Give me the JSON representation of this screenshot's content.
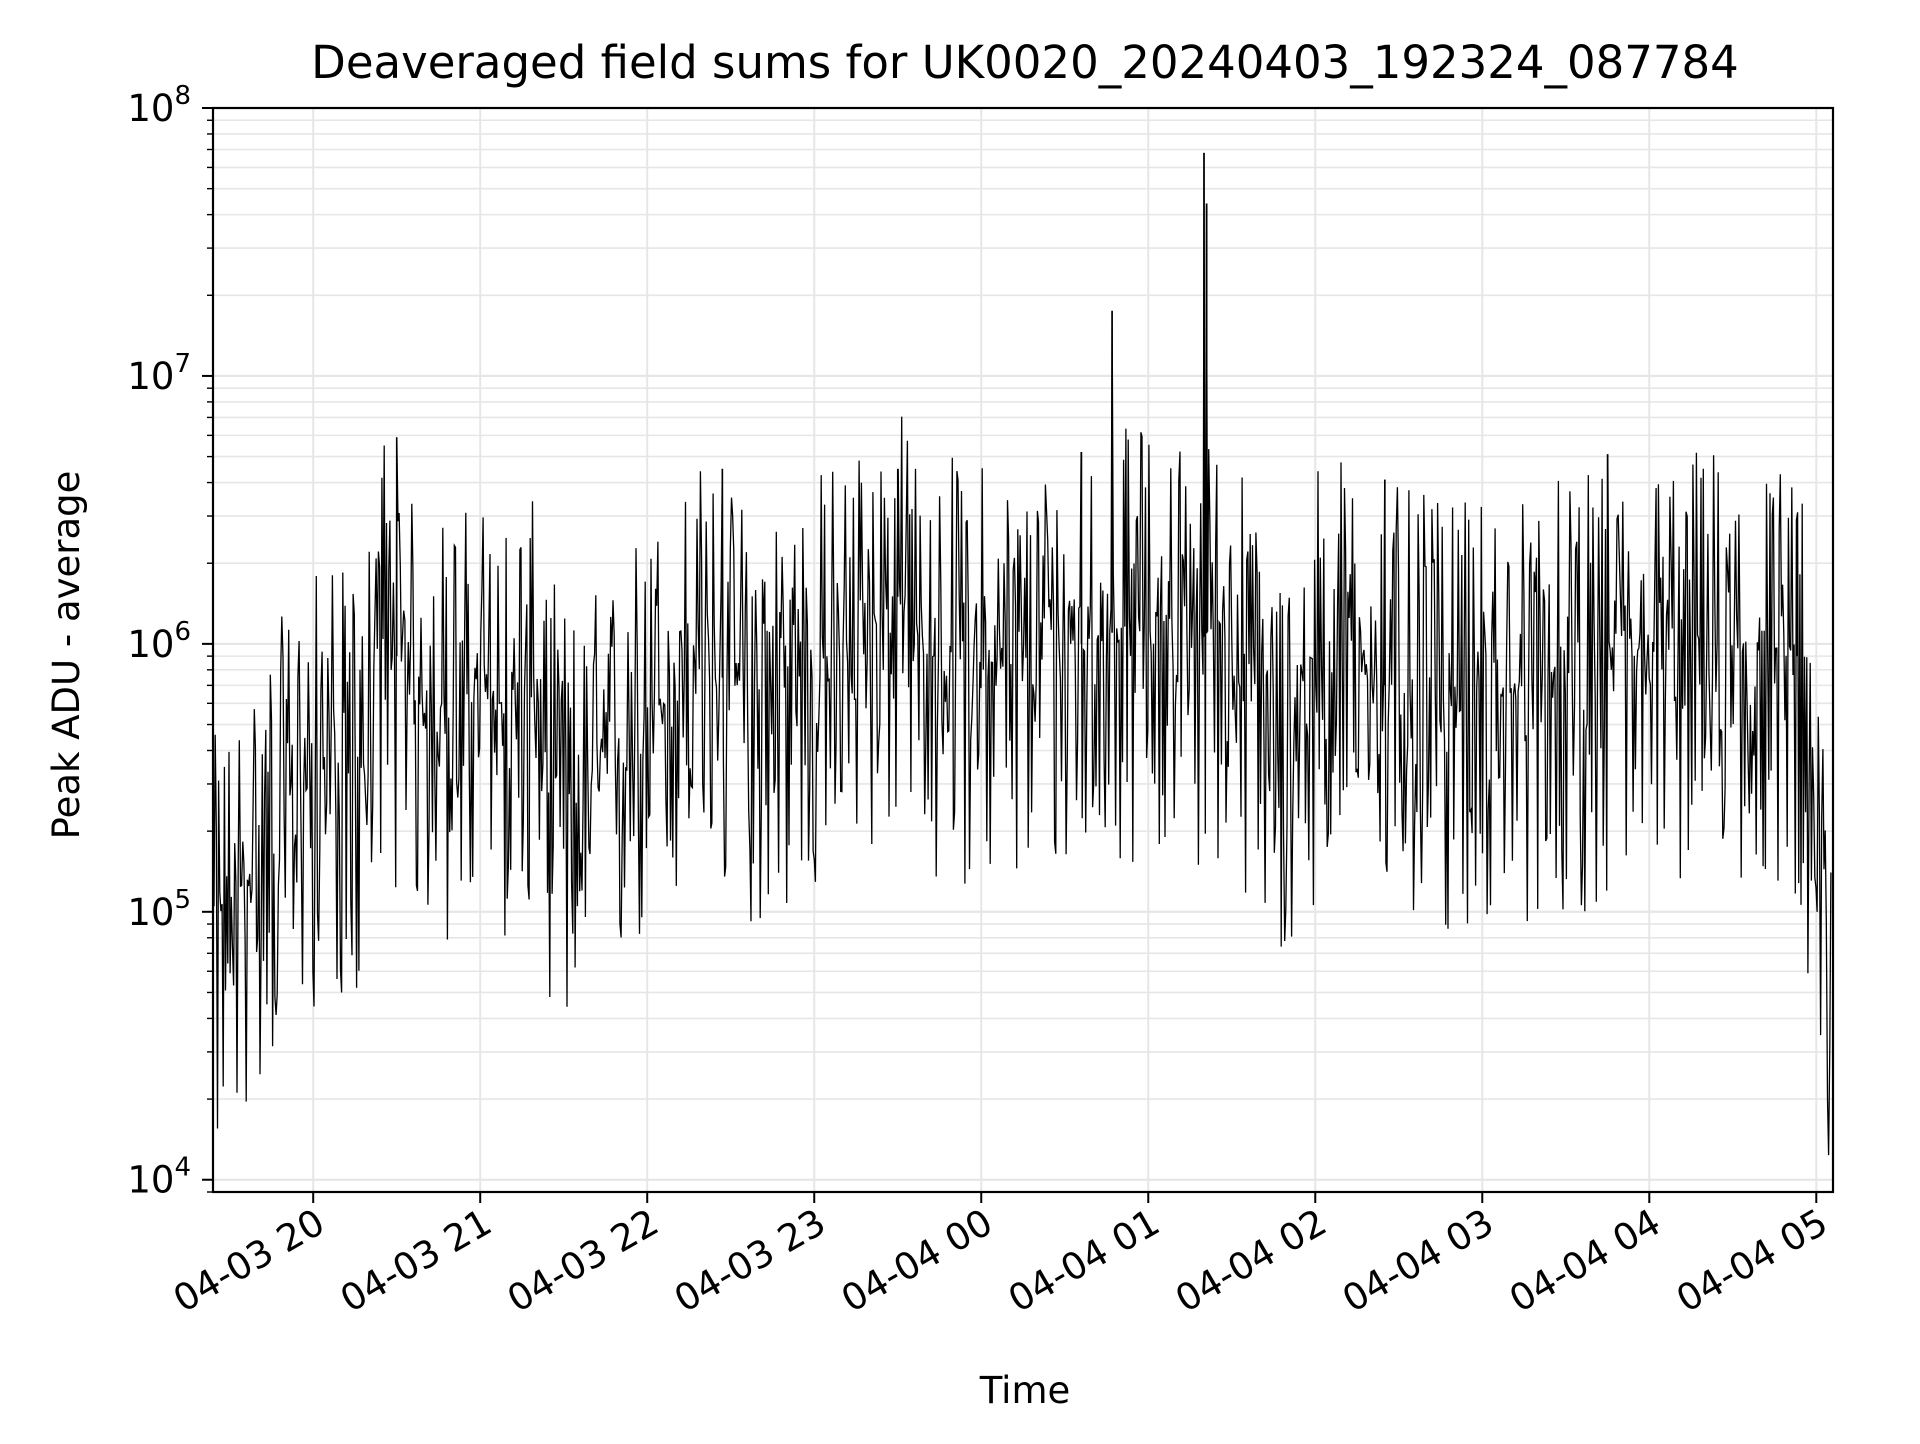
{
  "chart_data": {
    "type": "line",
    "title": "Deaveraged field sums for UK0020_20240403_192324_087784",
    "xlabel": "Time",
    "ylabel": "Peak ADU - average",
    "yscale": "log",
    "ylim": [
      9000,
      100000000
    ],
    "xlim": [
      "2024-04-03 19:24",
      "2024-04-04 05:06"
    ],
    "y_ticks": [
      {
        "value": 10000,
        "base": "10",
        "exp": "4"
      },
      {
        "value": 100000,
        "base": "10",
        "exp": "5"
      },
      {
        "value": 1000000,
        "base": "10",
        "exp": "6"
      },
      {
        "value": 10000000,
        "base": "10",
        "exp": "7"
      },
      {
        "value": 100000000,
        "base": "10",
        "exp": "8"
      }
    ],
    "x_ticks": [
      {
        "time": "2024-04-03 20:00",
        "label": "04-03 20"
      },
      {
        "time": "2024-04-03 21:00",
        "label": "04-03 21"
      },
      {
        "time": "2024-04-03 22:00",
        "label": "04-03 22"
      },
      {
        "time": "2024-04-03 23:00",
        "label": "04-03 23"
      },
      {
        "time": "2024-04-04 00:00",
        "label": "04-04 00"
      },
      {
        "time": "2024-04-04 01:00",
        "label": "04-04 01"
      },
      {
        "time": "2024-04-04 02:00",
        "label": "04-04 02"
      },
      {
        "time": "2024-04-04 03:00",
        "label": "04-04 03"
      },
      {
        "time": "2024-04-04 04:00",
        "label": "04-04 04"
      },
      {
        "time": "2024-04-04 05:00",
        "label": "04-04 05"
      }
    ],
    "grid": true,
    "line_color": "#000000",
    "grid_color": "#e6e6e6",
    "series": [
      {
        "x": [
          "2024-04-03 19:24",
          "2024-04-03 19:30",
          "2024-04-03 19:36",
          "2024-04-03 19:42",
          "2024-04-03 19:48",
          "2024-04-03 19:54",
          "2024-04-03 20:00",
          "2024-04-03 20:06",
          "2024-04-03 20:12",
          "2024-04-03 20:18",
          "2024-04-03 20:24",
          "2024-04-03 20:30",
          "2024-04-03 20:36",
          "2024-04-03 20:42",
          "2024-04-03 20:48",
          "2024-04-03 20:54",
          "2024-04-03 21:00",
          "2024-04-03 21:06",
          "2024-04-03 21:12",
          "2024-04-03 21:18",
          "2024-04-03 21:24",
          "2024-04-03 21:30",
          "2024-04-03 21:36",
          "2024-04-03 21:42",
          "2024-04-03 21:48",
          "2024-04-03 21:54",
          "2024-04-03 22:00",
          "2024-04-03 22:06",
          "2024-04-03 22:12",
          "2024-04-03 22:18",
          "2024-04-03 22:24",
          "2024-04-03 22:30",
          "2024-04-03 22:36",
          "2024-04-03 22:42",
          "2024-04-03 22:48",
          "2024-04-03 22:54",
          "2024-04-03 23:00",
          "2024-04-03 23:06",
          "2024-04-03 23:12",
          "2024-04-03 23:18",
          "2024-04-03 23:24",
          "2024-04-03 23:30",
          "2024-04-03 23:36",
          "2024-04-03 23:42",
          "2024-04-03 23:48",
          "2024-04-03 23:54",
          "2024-04-04 00:00",
          "2024-04-04 00:06",
          "2024-04-04 00:12",
          "2024-04-04 00:18",
          "2024-04-04 00:24",
          "2024-04-04 00:30",
          "2024-04-04 00:36",
          "2024-04-04 00:42",
          "2024-04-04 00:48",
          "2024-04-04 00:54",
          "2024-04-04 01:00",
          "2024-04-04 01:06",
          "2024-04-04 01:12",
          "2024-04-04 01:18",
          "2024-04-04 01:24",
          "2024-04-04 01:30",
          "2024-04-04 01:36",
          "2024-04-04 01:42",
          "2024-04-04 01:48",
          "2024-04-04 01:54",
          "2024-04-04 02:00",
          "2024-04-04 02:06",
          "2024-04-04 02:12",
          "2024-04-04 02:18",
          "2024-04-04 02:24",
          "2024-04-04 02:30",
          "2024-04-04 02:36",
          "2024-04-04 02:42",
          "2024-04-04 02:48",
          "2024-04-04 02:54",
          "2024-04-04 03:00",
          "2024-04-04 03:06",
          "2024-04-04 03:12",
          "2024-04-04 03:18",
          "2024-04-04 03:24",
          "2024-04-04 03:30",
          "2024-04-04 03:36",
          "2024-04-04 03:42",
          "2024-04-04 03:48",
          "2024-04-04 03:54",
          "2024-04-04 04:00",
          "2024-04-04 04:06",
          "2024-04-04 04:12",
          "2024-04-04 04:18",
          "2024-04-04 04:24",
          "2024-04-04 04:30",
          "2024-04-04 04:36",
          "2024-04-04 04:42",
          "2024-04-04 04:48",
          "2024-04-04 04:54",
          "2024-04-04 05:00",
          "2024-04-04 05:06"
        ],
        "y": [
          80000,
          100000,
          130000,
          180000,
          220000,
          280000,
          330000,
          400000,
          320000,
          300000,
          1300000,
          900000,
          600000,
          650000,
          550000,
          600000,
          650000,
          600000,
          600000,
          650000,
          400000,
          250000,
          250000,
          300000,
          350000,
          450000,
          550000,
          600000,
          750000,
          900000,
          800000,
          700000,
          650000,
          700000,
          700000,
          750000,
          800000,
          900000,
          1000000,
          1200000,
          1300000,
          1500000,
          1000000,
          900000,
          900000,
          1000000,
          900000,
          800000,
          850000,
          900000,
          900000,
          1000000,
          1000000,
          1100000,
          1100000,
          1200000,
          1200000,
          1300000,
          1100000,
          1000000,
          1200000,
          1200000,
          700000,
          400000,
          400000,
          450000,
          900000,
          1000000,
          900000,
          800000,
          700000,
          700000,
          650000,
          650000,
          600000,
          600000,
          700000,
          650000,
          650000,
          700000,
          800000,
          700000,
          750000,
          800000,
          800000,
          850000,
          900000,
          900000,
          1000000,
          1000000,
          1000000,
          950000,
          900000,
          900000,
          900000,
          900000,
          110000,
          60000
        ]
      }
    ],
    "spikes": [
      {
        "time": "2024-04-03 20:30",
        "value": 5900000
      },
      {
        "time": "2024-04-03 22:27",
        "value": 4500000
      },
      {
        "time": "2024-04-03 23:30",
        "value": 4500000
      },
      {
        "time": "2024-04-04 00:36",
        "value": 5200000
      },
      {
        "time": "2024-04-04 00:47",
        "value": 17500000
      },
      {
        "time": "2024-04-04 01:20",
        "value": 68000000
      },
      {
        "time": "2024-04-04 01:21",
        "value": 44000000
      },
      {
        "time": "2024-04-04 02:25",
        "value": 4100000
      },
      {
        "time": "2024-04-04 03:45",
        "value": 5100000
      },
      {
        "time": "2024-04-04 04:53",
        "value": 2900000
      }
    ]
  }
}
